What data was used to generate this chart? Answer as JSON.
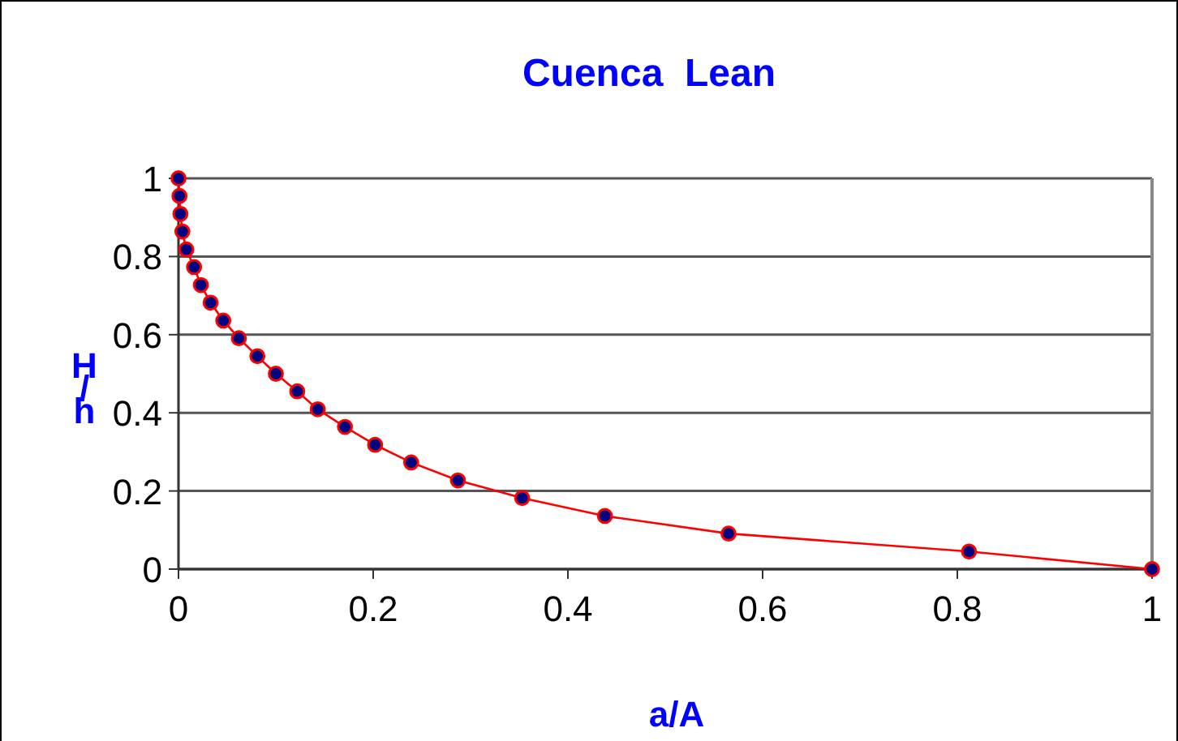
{
  "chart_data": {
    "type": "line",
    "title": "Cuenca  Lean",
    "xlabel": "a/A",
    "ylabel": "H/h",
    "x": [
      0,
      0.001,
      0.002,
      0.004,
      0.008,
      0.016,
      0.023,
      0.033,
      0.046,
      0.062,
      0.081,
      0.1,
      0.122,
      0.143,
      0.171,
      0.202,
      0.239,
      0.287,
      0.353,
      0.438,
      0.565,
      0.812,
      1
    ],
    "series": [
      {
        "color": "#ff0000",
        "values": [
          1,
          0.955,
          0.909,
          0.864,
          0.818,
          0.773,
          0.727,
          0.682,
          0.636,
          0.591,
          0.545,
          0.5,
          0.455,
          0.409,
          0.364,
          0.318,
          0.273,
          0.227,
          0.182,
          0.136,
          0.091,
          0.045,
          0
        ]
      }
    ],
    "xlim": [
      0,
      1
    ],
    "xticks": [
      0,
      0.2,
      0.4,
      0.6,
      0.8,
      1
    ],
    "ylim": [
      0,
      1
    ],
    "yticks": [
      0,
      0.2,
      0.4,
      0.6,
      0.8,
      1
    ],
    "grid": "y",
    "marker": "circle",
    "line_style": "solid"
  }
}
